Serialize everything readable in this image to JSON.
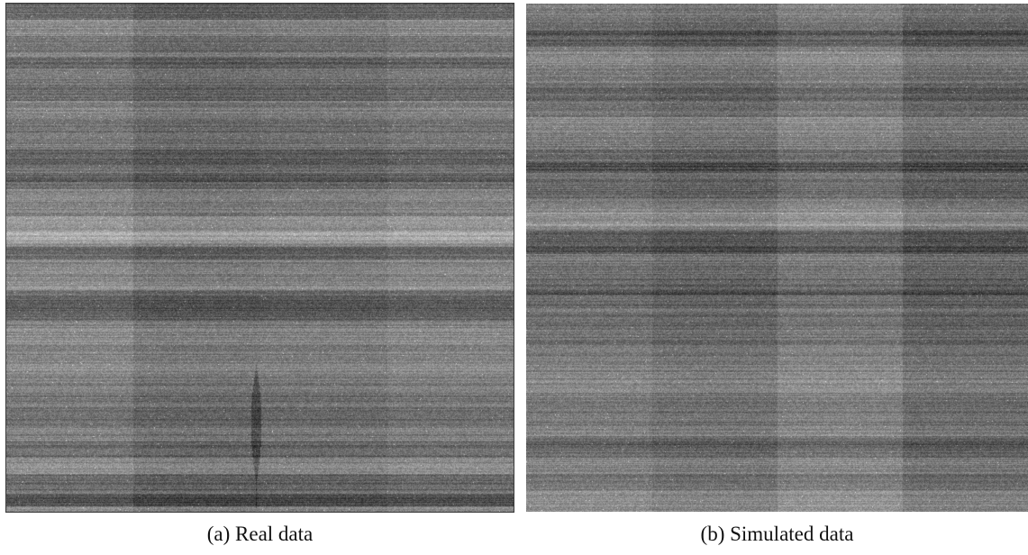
{
  "figure": {
    "panels": [
      {
        "caption": "(a) Real data"
      },
      {
        "caption": "(b) Simulated data"
      }
    ]
  },
  "colors": {
    "background": "#ffffff",
    "base_gray": "#7a7a7a",
    "dark_band": "#4a4a4a",
    "light_band": "#a8a8a8"
  }
}
